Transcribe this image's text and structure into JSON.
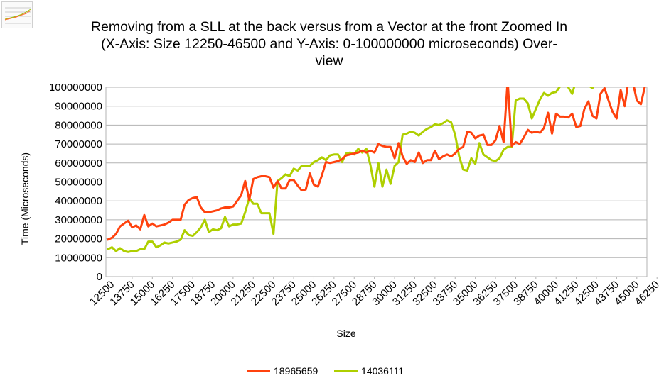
{
  "chart_data": {
    "type": "line",
    "title_lines": [
      "Removing from a SLL at the back versus from a Vector at the front Zoomed In",
      "(X-Axis: Size 12250-46500 and Y-Axis: 0-100000000 microseconds) Over-",
      "view"
    ],
    "xlabel": "Size",
    "ylabel": "Time (Microseconds)",
    "ylim": [
      0,
      100000000
    ],
    "y_ticks": [
      0,
      10000000,
      20000000,
      30000000,
      40000000,
      50000000,
      60000000,
      70000000,
      80000000,
      90000000,
      100000000
    ],
    "x_start": 12250,
    "x_step": 250,
    "x_tick_labels": [
      "12500",
      "13750",
      "15000",
      "16250",
      "17500",
      "18750",
      "20000",
      "21250",
      "22500",
      "23750",
      "25000",
      "26250",
      "27500",
      "28750",
      "30000",
      "31250",
      "32500",
      "33750",
      "35000",
      "36250",
      "37500",
      "38750",
      "40000",
      "41250",
      "42500",
      "43750",
      "45000",
      "46250"
    ],
    "grid": true,
    "legend_position": "bottom",
    "series": [
      {
        "name": "18965659",
        "color": "#ff420e",
        "values": [
          19500000,
          20500000,
          22500000,
          26500000,
          28000000,
          29500000,
          26000000,
          27000000,
          25000000,
          32500000,
          26500000,
          28000000,
          26500000,
          27000000,
          27500000,
          28500000,
          30000000,
          30000000,
          30000000,
          38000000,
          40500000,
          41500000,
          42000000,
          36500000,
          34000000,
          34000000,
          34500000,
          35000000,
          36000000,
          36500000,
          36500000,
          37000000,
          40000000,
          43000000,
          50500000,
          40500000,
          51500000,
          52500000,
          53000000,
          53000000,
          52500000,
          47000000,
          50500000,
          46500000,
          46500000,
          51000000,
          51000000,
          48000000,
          45500000,
          46000000,
          54500000,
          48500000,
          47500000,
          53500000,
          60500000,
          60000000,
          60500000,
          61000000,
          62000000,
          64000000,
          64500000,
          65000000,
          65500000,
          66500000,
          65500000,
          66500000,
          65500000,
          70000000,
          69000000,
          68500000,
          68500000,
          62500000,
          70500000,
          63500000,
          59500000,
          61500000,
          60500000,
          65500000,
          60000000,
          61500000,
          61500000,
          66500000,
          62000000,
          63500000,
          64500000,
          63500000,
          65000000,
          67500000,
          68500000,
          76500000,
          76000000,
          73000000,
          74500000,
          75000000,
          69500000,
          69500000,
          72000000,
          79500000,
          71000000,
          103500000,
          69000000,
          71000000,
          70000000,
          73500000,
          77500000,
          76000000,
          76500000,
          76000000,
          78500000,
          86500000,
          75500000,
          86000000,
          84500000,
          84500000,
          84000000,
          86000000,
          79000000,
          79500000,
          88500000,
          92500000,
          85000000,
          83500000,
          96500000,
          99500000,
          93000000,
          87000000,
          83500000,
          98500000,
          90000000,
          104500000,
          103000000,
          93000000,
          91000000,
          100500000
        ]
      },
      {
        "name": "14036111",
        "color": "#aecf00",
        "values": [
          14500000,
          15500000,
          13500000,
          15000000,
          13500000,
          13000000,
          13500000,
          13500000,
          14500000,
          14500000,
          18500000,
          18500000,
          15500000,
          16500000,
          18000000,
          17500000,
          18000000,
          18500000,
          19500000,
          24500000,
          22000000,
          21500000,
          23500000,
          26000000,
          30000000,
          23500000,
          25000000,
          24500000,
          25500000,
          31500000,
          26500000,
          27500000,
          27500000,
          28000000,
          34000000,
          41500000,
          38500000,
          38500000,
          33500000,
          33500000,
          33500000,
          22500000,
          50500000,
          52000000,
          54000000,
          53000000,
          57000000,
          56000000,
          58500000,
          58500000,
          58500000,
          60500000,
          61500000,
          63000000,
          61500000,
          64000000,
          64500000,
          64500000,
          60500000,
          65000000,
          65500000,
          64500000,
          67500000,
          65500000,
          67500000,
          59000000,
          47500000,
          60000000,
          47500000,
          56500000,
          49000000,
          58500000,
          60500000,
          75000000,
          75500000,
          76500000,
          76000000,
          74500000,
          76500000,
          78000000,
          79000000,
          80500000,
          80000000,
          81000000,
          82500000,
          81500000,
          75000000,
          63500000,
          56500000,
          56000000,
          62500000,
          59500000,
          70500000,
          64500000,
          63000000,
          61500000,
          61000000,
          62500000,
          67000000,
          68500000,
          68500000,
          93000000,
          94000000,
          94000000,
          91500000,
          83500000,
          88500000,
          93500000,
          97000000,
          95500000,
          97000000,
          97500000,
          100500000,
          104000000,
          100000000,
          96500000,
          104000000,
          104000000,
          103000000,
          101000000,
          99500000,
          104000000,
          104000000,
          104000000,
          104000000,
          104000000,
          104000000,
          104000000,
          104000000,
          104000000,
          104000000,
          104000000,
          104000000
        ]
      }
    ]
  }
}
